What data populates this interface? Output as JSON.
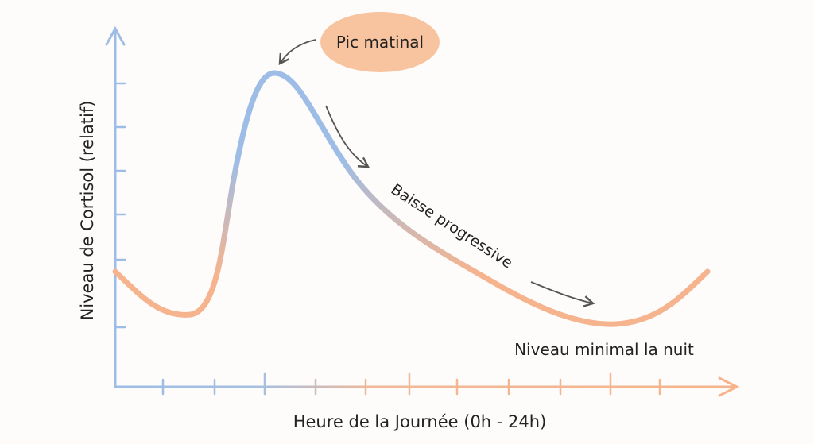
{
  "diagram": {
    "y_axis_label": "Niveau de Cortisol (relatif)",
    "x_axis_label": "Heure de la Journée (0h - 24h)",
    "annotations": {
      "peak": "Pic matinal",
      "decline": "Baisse progressive",
      "minimum": "Niveau minimal la nuit"
    }
  }
}
